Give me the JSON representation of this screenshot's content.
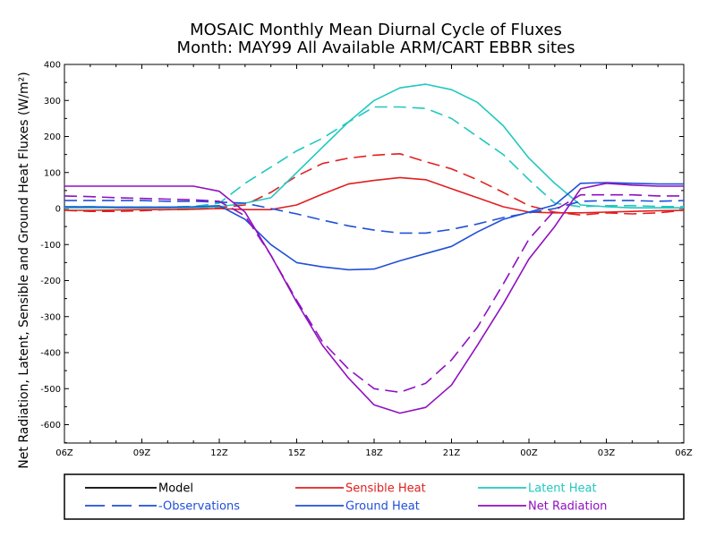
{
  "chart_data": {
    "type": "line",
    "title": "MOSAIC Monthly Mean Diurnal Cycle of Fluxes",
    "subtitle": "Month: MAY99 All Available ARM/CART EBBR sites",
    "ylabel": "Net Radiation, Latent, Sensible and Ground Heat Fluxes (W/m²)",
    "xlabel": "",
    "ylim": [
      -650,
      400
    ],
    "yticks": [
      400,
      300,
      200,
      100,
      0,
      -100,
      -200,
      -300,
      -400,
      -500,
      -600
    ],
    "xlim": [
      6,
      30
    ],
    "xticks": [
      {
        "value": 6,
        "label": "06Z"
      },
      {
        "value": 9,
        "label": "09Z"
      },
      {
        "value": 12,
        "label": "12Z"
      },
      {
        "value": 15,
        "label": "15Z"
      },
      {
        "value": 18,
        "label": "18Z"
      },
      {
        "value": 21,
        "label": "21Z"
      },
      {
        "value": 24,
        "label": "00Z"
      },
      {
        "value": 27,
        "label": "03Z"
      },
      {
        "value": 30,
        "label": "06Z"
      }
    ],
    "legend_position": "bottom",
    "legend": [
      {
        "label": "Model",
        "color": "#000000",
        "style": "solid"
      },
      {
        "label": "Sensible Heat",
        "color": "#e02020",
        "style": "solid"
      },
      {
        "label": "Latent Heat",
        "color": "#20c8c0",
        "style": "solid"
      },
      {
        "label": "-Observations",
        "color": "#2050d8",
        "style": "dashed"
      },
      {
        "label": "Ground Heat",
        "color": "#2050d8",
        "style": "solid"
      },
      {
        "label": "Net Radiation",
        "color": "#9010c0",
        "style": "solid"
      }
    ],
    "series": [
      {
        "name": "Sensible Heat",
        "kind": "Model",
        "color": "#e02020",
        "style": "solid",
        "x": [
          6,
          7,
          8,
          9,
          10,
          11,
          12,
          13,
          14,
          15,
          16,
          17,
          18,
          19,
          20,
          21,
          22,
          23,
          24,
          25,
          26,
          27,
          28,
          29,
          30
        ],
        "values": [
          -5,
          -5,
          -4,
          -3,
          -3,
          -2,
          0,
          -3,
          -3,
          10,
          40,
          68,
          78,
          86,
          80,
          55,
          30,
          5,
          -10,
          -12,
          -12,
          -10,
          -8,
          -6,
          -5
        ]
      },
      {
        "name": "Sensible Heat",
        "kind": "Observations",
        "color": "#e02020",
        "style": "dashed",
        "x": [
          6,
          7,
          8,
          9,
          10,
          11,
          12,
          13,
          14,
          15,
          16,
          17,
          18,
          19,
          20,
          21,
          22,
          23,
          24,
          25,
          26,
          27,
          28,
          29,
          30
        ],
        "values": [
          -5,
          -8,
          -8,
          -6,
          -3,
          -2,
          2,
          10,
          45,
          90,
          125,
          140,
          148,
          152,
          130,
          110,
          80,
          45,
          8,
          -10,
          -18,
          -12,
          -15,
          -12,
          -5
        ]
      },
      {
        "name": "Latent Heat",
        "kind": "Model",
        "color": "#20c8c0",
        "style": "solid",
        "x": [
          6,
          7,
          8,
          9,
          10,
          11,
          12,
          13,
          14,
          15,
          16,
          17,
          18,
          19,
          20,
          21,
          22,
          23,
          24,
          25,
          26,
          27,
          28,
          29,
          30
        ],
        "values": [
          2,
          2,
          2,
          2,
          2,
          2,
          5,
          15,
          30,
          100,
          170,
          240,
          300,
          335,
          345,
          330,
          295,
          230,
          140,
          70,
          10,
          5,
          2,
          2,
          2
        ]
      },
      {
        "name": "Latent Heat",
        "kind": "Observations",
        "color": "#20c8c0",
        "style": "dashed",
        "x": [
          6,
          7,
          8,
          9,
          10,
          11,
          12,
          13,
          14,
          15,
          16,
          17,
          18,
          19,
          20,
          21,
          22,
          23,
          24,
          25,
          26,
          27,
          28,
          29,
          30
        ],
        "values": [
          5,
          5,
          4,
          4,
          4,
          6,
          15,
          70,
          115,
          160,
          195,
          240,
          282,
          282,
          278,
          250,
          200,
          150,
          80,
          15,
          5,
          8,
          8,
          6,
          5
        ]
      },
      {
        "name": "Ground Heat",
        "kind": "Model",
        "color": "#2050d8",
        "style": "solid",
        "x": [
          6,
          7,
          8,
          9,
          10,
          11,
          12,
          13,
          14,
          15,
          16,
          17,
          18,
          19,
          20,
          21,
          22,
          23,
          24,
          25,
          26,
          27,
          28,
          29,
          30
        ],
        "values": [
          5,
          5,
          4,
          4,
          4,
          5,
          8,
          -30,
          -100,
          -150,
          -162,
          -170,
          -168,
          -145,
          -125,
          -105,
          -65,
          -30,
          -10,
          10,
          70,
          72,
          70,
          68,
          68
        ]
      },
      {
        "name": "Ground Heat",
        "kind": "Observations",
        "color": "#2050d8",
        "style": "dashed",
        "x": [
          6,
          7,
          8,
          9,
          10,
          11,
          12,
          13,
          14,
          15,
          16,
          17,
          18,
          19,
          20,
          21,
          22,
          23,
          24,
          25,
          26,
          27,
          28,
          29,
          30
        ],
        "values": [
          22,
          22,
          22,
          22,
          20,
          20,
          18,
          15,
          0,
          -15,
          -32,
          -48,
          -60,
          -68,
          -68,
          -58,
          -43,
          -25,
          -12,
          0,
          20,
          22,
          22,
          20,
          22
        ]
      },
      {
        "name": "Net Radiation",
        "kind": "Model",
        "color": "#9010c0",
        "style": "solid",
        "x": [
          6,
          7,
          8,
          9,
          10,
          11,
          12,
          13,
          14,
          15,
          16,
          17,
          18,
          19,
          20,
          21,
          22,
          23,
          24,
          25,
          26,
          27,
          28,
          29,
          30
        ],
        "values": [
          62,
          62,
          62,
          62,
          62,
          62,
          48,
          -10,
          -130,
          -260,
          -380,
          -470,
          -545,
          -568,
          -552,
          -490,
          -380,
          -265,
          -140,
          -50,
          55,
          70,
          65,
          62,
          62
        ]
      },
      {
        "name": "Net Radiation",
        "kind": "Observations",
        "color": "#9010c0",
        "style": "dashed",
        "x": [
          6,
          7,
          8,
          9,
          10,
          11,
          12,
          13,
          14,
          15,
          16,
          17,
          18,
          19,
          20,
          21,
          22,
          23,
          24,
          25,
          26,
          27,
          28,
          29,
          30
        ],
        "values": [
          35,
          33,
          30,
          28,
          26,
          24,
          20,
          -20,
          -130,
          -255,
          -370,
          -445,
          -500,
          -510,
          -485,
          -420,
          -330,
          -210,
          -85,
          -5,
          38,
          38,
          38,
          35,
          35
        ]
      }
    ]
  }
}
